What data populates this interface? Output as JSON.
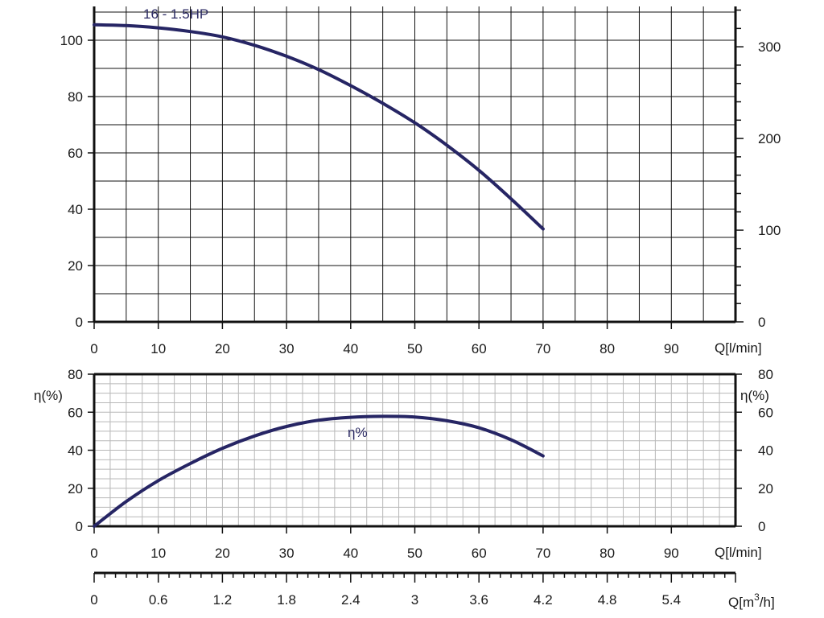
{
  "chart_data": [
    {
      "type": "line",
      "panel": "head",
      "annotation": "16 - 1.5HP",
      "xlabel": "Q[l/min]",
      "xlim": [
        0,
        100
      ],
      "x_ticks": [
        0,
        10,
        20,
        30,
        40,
        50,
        60,
        70,
        80,
        90
      ],
      "ylim": [
        0,
        112
      ],
      "y_ticks": [
        0,
        20,
        40,
        60,
        80,
        100
      ],
      "y2lim": [
        0,
        344
      ],
      "y2_ticks": [
        0,
        100,
        200,
        300
      ],
      "grid": true,
      "series": [
        {
          "x": [
            0,
            5,
            10,
            15,
            20,
            25,
            30,
            35,
            40,
            45,
            50,
            55,
            60,
            65,
            70
          ],
          "y": [
            105.5,
            105.2,
            104.4,
            103.1,
            101.2,
            98.2,
            94.3,
            89.6,
            83.9,
            77.6,
            70.7,
            62.7,
            53.8,
            43.7,
            33
          ]
        }
      ]
    },
    {
      "type": "line",
      "panel": "efficiency",
      "ylabel": "η(%)",
      "y2label": "η(%)",
      "xlabel": "Q[l/min]",
      "xlim": [
        0,
        100
      ],
      "x_ticks": [
        0,
        10,
        20,
        30,
        40,
        50,
        60,
        70,
        80,
        90
      ],
      "ylim": [
        0,
        80
      ],
      "y_ticks": [
        0,
        20,
        40,
        60,
        80
      ],
      "y2_ticks": [
        0,
        20,
        40,
        60,
        80
      ],
      "grid": true,
      "series": [
        {
          "name": "η%",
          "x": [
            0,
            5,
            10,
            15,
            20,
            25,
            30,
            35,
            40,
            45,
            50,
            55,
            60,
            65,
            70
          ],
          "y": [
            0,
            13,
            24,
            33,
            41,
            47.5,
            52.5,
            55.8,
            57.3,
            57.8,
            57.5,
            55.5,
            51.8,
            45.5,
            37
          ]
        }
      ]
    },
    {
      "type": "axis",
      "panel": "flow-m3h",
      "xlabel_prefix": "Q[m",
      "xlabel_sup": "3",
      "xlabel_suffix": "/h]",
      "xlim": [
        0,
        6
      ],
      "x_ticks": [
        "0",
        "0.6",
        "1.2",
        "1.8",
        "2.4",
        "3",
        "3.6",
        "4.2",
        "4.8",
        "5.4"
      ]
    }
  ],
  "colors": {
    "curve": "#262564",
    "grid_major": "#111111",
    "grid_minor": "#b8b8b8"
  }
}
